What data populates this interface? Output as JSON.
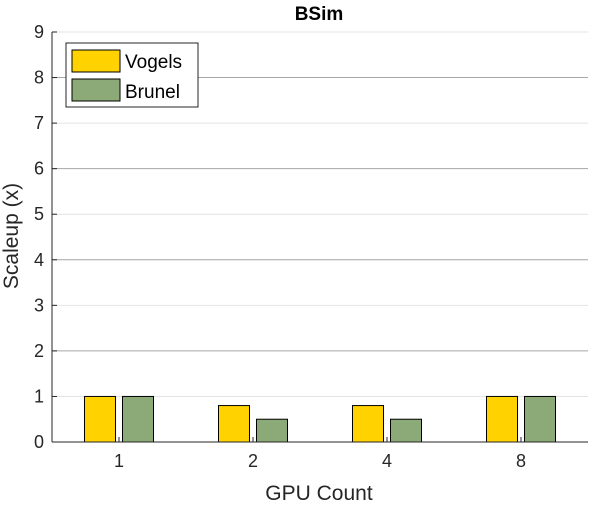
{
  "chart_data": {
    "type": "bar",
    "title": "BSim",
    "xlabel": "GPU Count",
    "ylabel": "Scaleup (x)",
    "categories": [
      "1",
      "2",
      "4",
      "8"
    ],
    "series": [
      {
        "name": "Vogels",
        "values": [
          1.0,
          0.8,
          0.8,
          1.0
        ],
        "color": "#ffd200"
      },
      {
        "name": "Brunel",
        "values": [
          1.0,
          0.5,
          0.5,
          1.0
        ],
        "color": "#8caa78"
      }
    ],
    "ylim": [
      0,
      9
    ],
    "yticks": [
      "0",
      "1",
      "2",
      "3",
      "4",
      "5",
      "6",
      "7",
      "8",
      "9"
    ],
    "grid": "horizontal",
    "legend_position": "top-left"
  }
}
